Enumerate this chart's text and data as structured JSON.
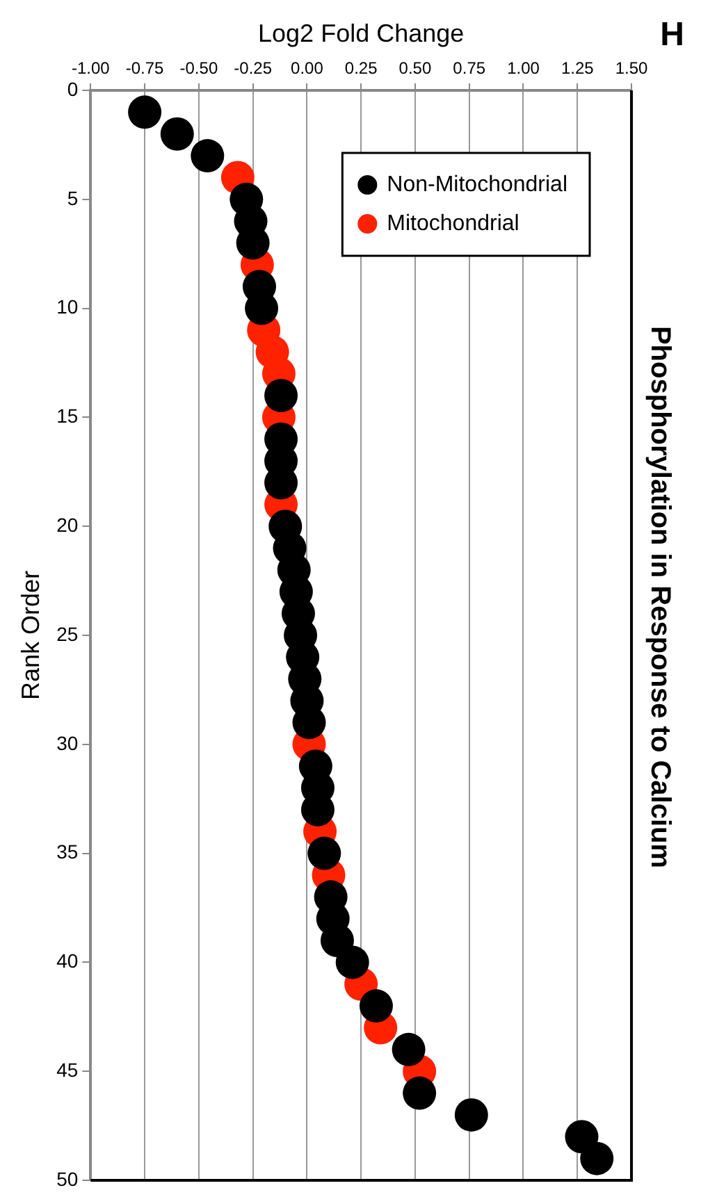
{
  "chart_data": {
    "type": "scatter",
    "title": "Phosphorylation in Response to Calcium",
    "xlabel": "Log2 Fold Change",
    "ylabel": "Rank Order",
    "annotations": [
      "H"
    ],
    "ylim": [
      50,
      0
    ],
    "yticks": [
      0,
      5,
      10,
      15,
      20,
      25,
      30,
      35,
      40,
      45,
      50
    ],
    "xlim": [
      -1,
      1.5
    ],
    "xticks": [
      {
        "value": -1,
        "label": "-1.00"
      },
      {
        "value": -0.75,
        "label": "-0.75"
      },
      {
        "value": -0.5,
        "label": "-0.50"
      },
      {
        "value": -0.25,
        "label": "-0.25"
      },
      {
        "value": 0,
        "label": "0.00"
      },
      {
        "value": 0.25,
        "label": "0.25"
      },
      {
        "value": 0.5,
        "label": "0.50"
      },
      {
        "value": 0.75,
        "label": "0.75"
      },
      {
        "value": 1,
        "label": "1.00"
      },
      {
        "value": 1.25,
        "label": "1.25"
      },
      {
        "value": 1.5,
        "label": "1.50"
      }
    ],
    "grid": "x",
    "legend": "top right",
    "marker": "circle",
    "series": [
      {
        "name": "Non-Mitochondrial",
        "color": "#000000",
        "x": [
          -0.75,
          -0.6,
          -0.46,
          -0.28,
          -0.26,
          -0.25,
          -0.22,
          -0.21,
          -0.12,
          -0.12,
          -0.12,
          -0.12,
          -0.1,
          -0.08,
          -0.06,
          -0.05,
          -0.04,
          -0.03,
          -0.02,
          -0.01,
          0,
          0.01,
          0.04,
          0.05,
          0.05,
          0.08,
          0.11,
          0.12,
          0.14,
          0.21,
          0.32,
          0.47,
          0.52,
          0.76,
          1.27,
          1.34
        ],
        "values": [
          1,
          2,
          3,
          5,
          6,
          7,
          9,
          10,
          14,
          16,
          17,
          18,
          20,
          21,
          22,
          23,
          24,
          25,
          26,
          27,
          28,
          29,
          31,
          32,
          33,
          35,
          37,
          38,
          39,
          40,
          42,
          44,
          46,
          47,
          48,
          49
        ]
      },
      {
        "name": "Mitochondrial",
        "color": "#ff2200",
        "x": [
          -0.32,
          -0.23,
          -0.2,
          -0.16,
          -0.13,
          -0.13,
          -0.12,
          0.01,
          0.06,
          0.1,
          0.25,
          0.34,
          0.52
        ],
        "values": [
          4,
          8,
          11,
          12,
          13,
          15,
          19,
          30,
          34,
          36,
          41,
          43,
          45
        ]
      }
    ]
  }
}
